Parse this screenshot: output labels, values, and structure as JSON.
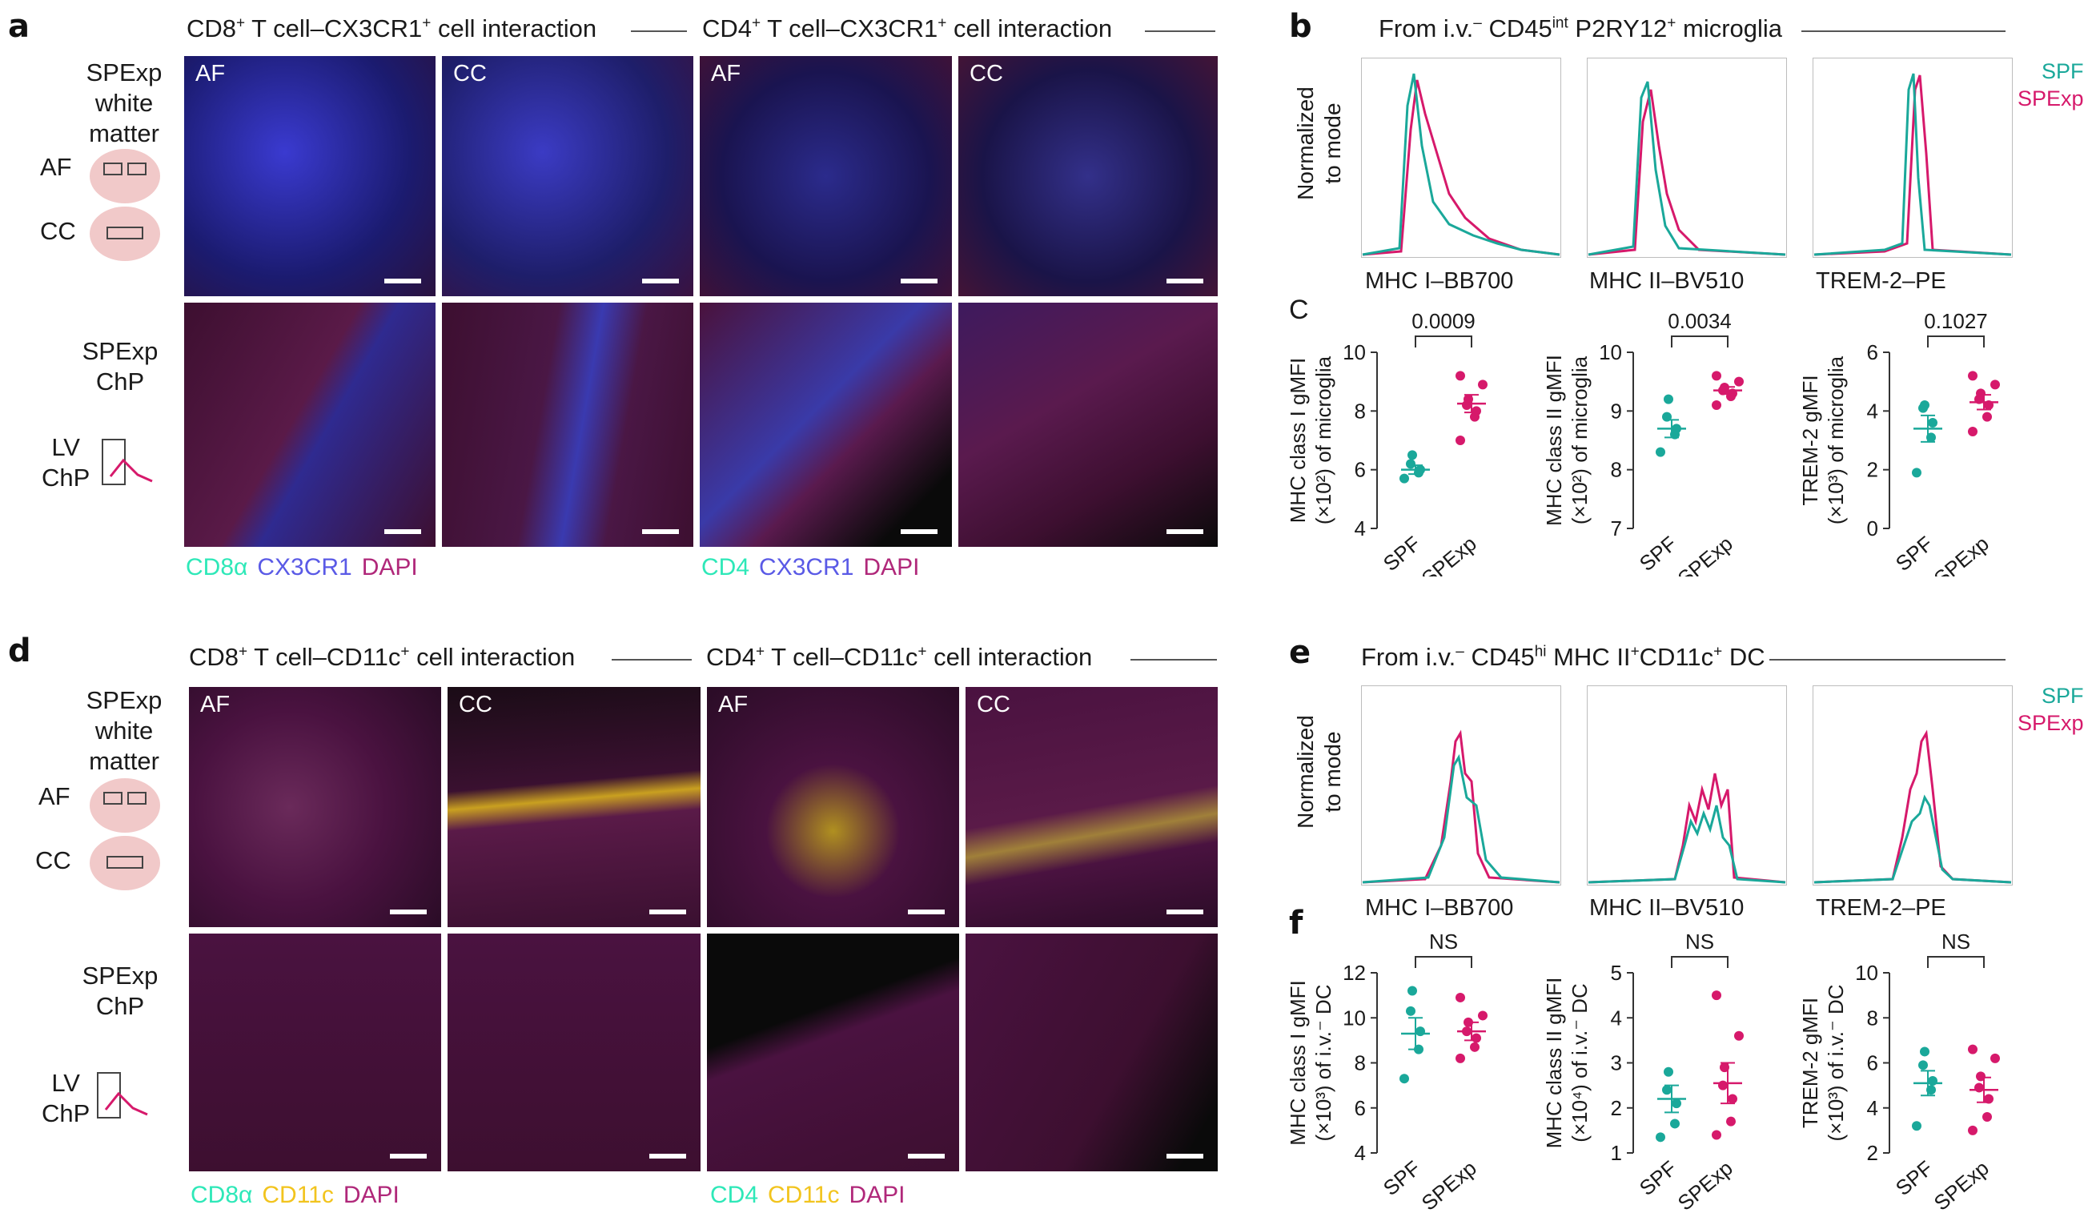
{
  "colors": {
    "spf": "#1aa89a",
    "spexp": "#d6196b",
    "cd8": "#2ee8b8",
    "cx3cr1": "#5a5ae6",
    "dapi": "#b0287a",
    "cd11c": "#f2c41e"
  },
  "panel_a": {
    "letter": "a",
    "header_left": {
      "pre": "CD8",
      "sup": "+",
      "post": " T cell–CX3CR1",
      "sup2": "+",
      "post2": " cell interaction"
    },
    "header_right": {
      "pre": "CD4",
      "sup": "+",
      "post": " T cell–CX3CR1",
      "sup2": "+",
      "post2": " cell interaction"
    },
    "row1_label": [
      "SPExp",
      "white",
      "matter"
    ],
    "af_label": "AF",
    "cc_label": "CC",
    "row2_label": [
      "SPExp",
      "ChP"
    ],
    "lv_label": [
      "LV",
      "ChP"
    ],
    "tags": [
      "AF",
      "CC",
      "AF",
      "CC"
    ],
    "legend_left": [
      "CD8α",
      "CX3CR1",
      "DAPI"
    ],
    "legend_right": [
      "CD4",
      "CX3CR1",
      "DAPI"
    ]
  },
  "panel_b": {
    "letter": "b",
    "header": {
      "pre": "From i.v.",
      "sup0": "–",
      "mid": " CD45",
      "sup1": "int",
      "mid2": " P2RY12",
      "sup2": "+",
      "post": " microglia"
    },
    "ylabel": [
      "Normalized",
      "to mode"
    ],
    "legend": [
      "SPF",
      "SPExp"
    ],
    "hist_labels": [
      "MHC I–BB700",
      "MHC II–BV510",
      "TREM-2–PE"
    ]
  },
  "panel_c": {
    "letter": "C",
    "ylabels": [
      [
        "MHC class I gMFI",
        "(×10²) of microglia"
      ],
      [
        "MHC class II gMFI",
        "(×10²) of microglia"
      ],
      [
        "TREM-2 gMFI",
        "(×10³) of microglia"
      ]
    ],
    "pvalues": [
      "0.0009",
      "0.0034",
      "0.1027"
    ],
    "x_categories": [
      "SPF",
      "SPExp"
    ]
  },
  "panel_d": {
    "letter": "d",
    "header_left": {
      "pre": "CD8",
      "sup": "+",
      "post": " T cell–CD11c",
      "sup2": "+",
      "post2": " cell interaction"
    },
    "header_right": {
      "pre": "CD4",
      "sup": "+",
      "post": " T cell–CD11c",
      "sup2": "+",
      "post2": " cell interaction"
    },
    "row1_label": [
      "SPExp",
      "white",
      "matter"
    ],
    "af_label": "AF",
    "cc_label": "CC",
    "row2_label": [
      "SPExp",
      "ChP"
    ],
    "lv_label": [
      "LV",
      "ChP"
    ],
    "tags": [
      "AF",
      "CC",
      "AF",
      "CC"
    ],
    "legend_left": [
      "CD8α",
      "CD11c",
      "DAPI"
    ],
    "legend_right": [
      "CD4",
      "CD11c",
      "DAPI"
    ]
  },
  "panel_e": {
    "letter": "e",
    "header": {
      "pre": "From i.v.",
      "sup0": "–",
      "mid": " CD45",
      "sup1": "hi",
      "mid2": " MHC II",
      "sup2": "+",
      "mid3": "CD11c",
      "sup3": "+",
      "post": " DC"
    },
    "ylabel": [
      "Normalized",
      "to mode"
    ],
    "legend": [
      "SPF",
      "SPExp"
    ],
    "hist_labels": [
      "MHC I–BB700",
      "MHC II–BV510",
      "TREM-2–PE"
    ]
  },
  "panel_f": {
    "letter": "f",
    "ylabels": [
      [
        "MHC class I gMFI",
        "(×10³) of i.v.⁻ DC"
      ],
      [
        "MHC class II gMFI",
        "(×10⁴) of i.v.⁻ DC"
      ],
      [
        "TREM-2 gMFI",
        "(×10³) of i.v.⁻ DC"
      ]
    ],
    "pvalues": [
      "NS",
      "NS",
      "NS"
    ],
    "x_categories": [
      "SPF",
      "SPExp"
    ]
  },
  "chart_data": [
    {
      "type": "scatter",
      "panel": "c",
      "ylabel": "MHC class I gMFI (×10²) of microglia",
      "ylim": [
        4,
        10
      ],
      "yticks": [
        4,
        6,
        8,
        10
      ],
      "categories": [
        "SPF",
        "SPExp"
      ],
      "series": [
        {
          "name": "SPF",
          "values": [
            5.7,
            5.9,
            6.0,
            6.2,
            6.5
          ],
          "mean": 6.0,
          "sem": 0.15
        },
        {
          "name": "SPExp",
          "values": [
            7.0,
            7.8,
            8.0,
            8.2,
            8.4,
            8.9,
            9.2
          ],
          "mean": 8.25,
          "sem": 0.3
        }
      ],
      "annotation": "0.0009"
    },
    {
      "type": "scatter",
      "panel": "c",
      "ylabel": "MHC class II gMFI (×10²) of microglia",
      "ylim": [
        7,
        10
      ],
      "yticks": [
        7,
        8,
        9,
        10
      ],
      "categories": [
        "SPF",
        "SPExp"
      ],
      "series": [
        {
          "name": "SPF",
          "values": [
            8.3,
            8.6,
            8.7,
            8.9,
            9.2
          ],
          "mean": 8.7,
          "sem": 0.15
        },
        {
          "name": "SPExp",
          "values": [
            9.1,
            9.25,
            9.3,
            9.35,
            9.4,
            9.5,
            9.6
          ],
          "mean": 9.35,
          "sem": 0.06
        }
      ],
      "annotation": "0.0034"
    },
    {
      "type": "scatter",
      "panel": "c",
      "ylabel": "TREM-2 gMFI (×10³) of microglia",
      "ylim": [
        0,
        6
      ],
      "yticks": [
        0,
        2,
        4,
        6
      ],
      "categories": [
        "SPF",
        "SPExp"
      ],
      "series": [
        {
          "name": "SPF",
          "values": [
            1.9,
            3.1,
            3.6,
            4.1,
            4.2
          ],
          "mean": 3.4,
          "sem": 0.45
        },
        {
          "name": "SPExp",
          "values": [
            3.3,
            3.8,
            4.2,
            4.4,
            4.6,
            4.9,
            5.2
          ],
          "mean": 4.3,
          "sem": 0.25
        }
      ],
      "annotation": "0.1027"
    },
    {
      "type": "scatter",
      "panel": "f",
      "ylabel": "MHC class I gMFI (×10³) of i.v.⁻ DC",
      "ylim": [
        4,
        12
      ],
      "yticks": [
        4,
        6,
        8,
        10,
        12
      ],
      "categories": [
        "SPF",
        "SPExp"
      ],
      "series": [
        {
          "name": "SPF",
          "values": [
            7.3,
            8.6,
            9.4,
            10.3,
            11.2
          ],
          "mean": 9.3,
          "sem": 0.7
        },
        {
          "name": "SPExp",
          "values": [
            8.2,
            8.7,
            9.1,
            9.4,
            9.8,
            10.1,
            10.9
          ],
          "mean": 9.4,
          "sem": 0.4
        }
      ],
      "annotation": "NS"
    },
    {
      "type": "scatter",
      "panel": "f",
      "ylabel": "MHC class II gMFI (×10⁴) of i.v.⁻ DC",
      "ylim": [
        1,
        5
      ],
      "yticks": [
        1,
        2,
        3,
        4,
        5
      ],
      "categories": [
        "SPF",
        "SPExp"
      ],
      "series": [
        {
          "name": "SPF",
          "values": [
            1.35,
            1.65,
            2.1,
            2.4,
            2.8
          ],
          "mean": 2.2,
          "sem": 0.3
        },
        {
          "name": "SPExp",
          "values": [
            1.4,
            1.7,
            2.2,
            2.5,
            2.9,
            3.6,
            4.5
          ],
          "mean": 2.55,
          "sem": 0.45
        }
      ],
      "annotation": "NS"
    },
    {
      "type": "scatter",
      "panel": "f",
      "ylabel": "TREM-2 gMFI (×10³) of i.v.⁻ DC",
      "ylim": [
        2,
        10
      ],
      "yticks": [
        2,
        4,
        6,
        8,
        10
      ],
      "categories": [
        "SPF",
        "SPExp"
      ],
      "series": [
        {
          "name": "SPF",
          "values": [
            3.2,
            4.8,
            5.2,
            5.9,
            6.5
          ],
          "mean": 5.1,
          "sem": 0.55
        },
        {
          "name": "SPExp",
          "values": [
            3.0,
            3.6,
            4.4,
            4.9,
            5.4,
            6.2,
            6.6
          ],
          "mean": 4.8,
          "sem": 0.55
        }
      ],
      "annotation": "NS"
    }
  ]
}
